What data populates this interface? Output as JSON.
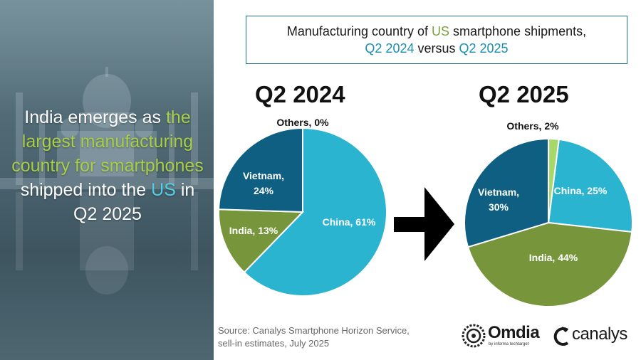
{
  "hero": {
    "line1": "India emerges as ",
    "hl1": "the largest manufacturing country for smartphones",
    "line2": " shipped into the ",
    "hl2": "US",
    "line3": " in Q2 2025",
    "colors": {
      "green": "#a8cf45",
      "blue": "#4fd2e6"
    }
  },
  "title": {
    "part1": "Manufacturing country of ",
    "us": "US",
    "part2": " smartphone shipments,",
    "q1": "Q2 2024",
    "versus": " versus ",
    "q2": "Q2 2025"
  },
  "source": {
    "line1": "Source: Canalys Smartphone Horizon Service,",
    "line2": "sell-in estimates, July 2025"
  },
  "logos": {
    "omdia": "Omdia",
    "omdia_sub": "by informa techtarget",
    "canalys": "canalys"
  },
  "arrow_icon": "right-arrow-icon",
  "chart_data": [
    {
      "type": "pie",
      "title": "Q2 2024",
      "slices": [
        {
          "label": "China",
          "value": 61,
          "text": "China, 61%",
          "color": "#2ab4d0"
        },
        {
          "label": "India",
          "value": 13,
          "text": "India, 13%",
          "color": "#77963c"
        },
        {
          "label": "Vietnam",
          "value": 24,
          "text": "Vietnam,|24%",
          "color": "#0e5f82"
        },
        {
          "label": "Others",
          "value": 0,
          "text": "Others, 0%",
          "color": "#a6d96a"
        }
      ]
    },
    {
      "type": "pie",
      "title": "Q2 2025",
      "slices": [
        {
          "label": "China",
          "value": 25,
          "text": "China, 25%",
          "color": "#2ab4d0"
        },
        {
          "label": "India",
          "value": 44,
          "text": "India, 44%",
          "color": "#77963c"
        },
        {
          "label": "Vietnam",
          "value": 30,
          "text": "Vietnam,|30%",
          "color": "#0e5f82"
        },
        {
          "label": "Others",
          "value": 2,
          "text": "Others, 2%",
          "color": "#a6d96a"
        }
      ]
    }
  ]
}
